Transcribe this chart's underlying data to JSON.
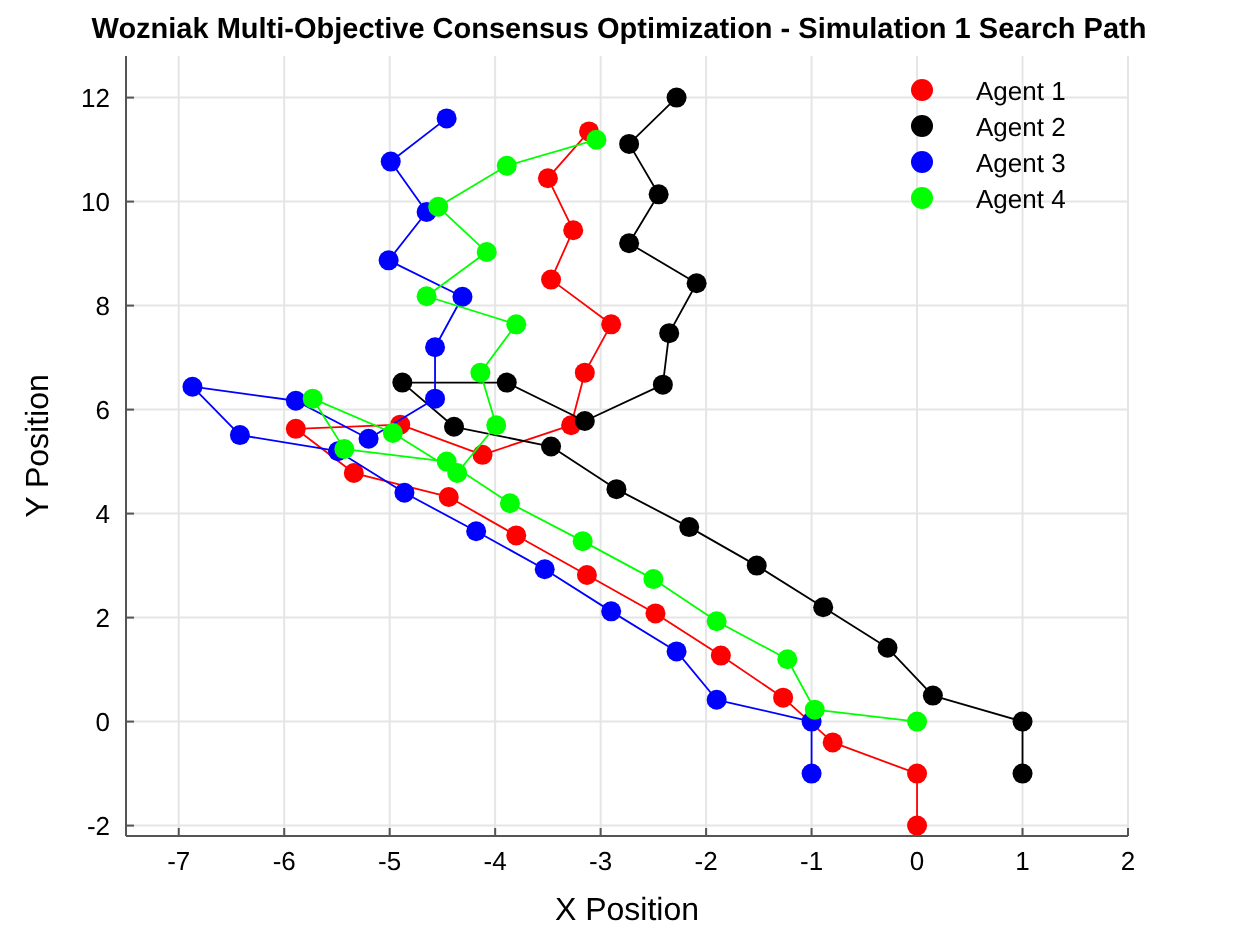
{
  "chart_data": {
    "type": "line",
    "title": "Wozniak Multi-Objective Consensus Optimization - Simulation 1 Search Path",
    "xlabel": "X Position",
    "ylabel": "Y Position",
    "xlim": [
      -7.5,
      2
    ],
    "ylim": [
      -2.2,
      12.8
    ],
    "xticks": [
      -7,
      -6,
      -5,
      -4,
      -3,
      -2,
      -1,
      0,
      1,
      2
    ],
    "yticks": [
      -2,
      0,
      2,
      4,
      6,
      8,
      10,
      12
    ],
    "grid": true,
    "legend": "top right",
    "marker": "circle",
    "line_style": "solid",
    "series": [
      {
        "name": "Agent 1",
        "color": "#ff0000",
        "x": [
          0,
          0,
          -0.8,
          -1.27,
          -1.86,
          -2.48,
          -3.13,
          -3.8,
          -4.44,
          -5.34,
          -5.89,
          -4.9,
          -4.12,
          -3.28,
          -3.15,
          -2.9,
          -3.47,
          -3.26,
          -3.5,
          -3.11
        ],
        "values": [
          -2,
          -1,
          -0.4,
          0.46,
          1.27,
          2.08,
          2.82,
          3.58,
          4.32,
          4.78,
          5.63,
          5.71,
          5.13,
          5.7,
          6.71,
          7.64,
          8.5,
          9.45,
          10.45,
          11.35
        ]
      },
      {
        "name": "Agent 2",
        "color": "#000000",
        "x": [
          1,
          1,
          0.15,
          -0.28,
          -0.89,
          -1.52,
          -2.16,
          -2.85,
          -3.47,
          -4.39,
          -4.88,
          -3.89,
          -3.15,
          -2.41,
          -2.35,
          -2.09,
          -2.73,
          -2.45,
          -2.73,
          -2.28
        ],
        "values": [
          -1,
          0,
          0.5,
          1.42,
          2.2,
          3,
          3.74,
          4.47,
          5.29,
          5.67,
          6.52,
          6.52,
          5.78,
          6.48,
          7.47,
          8.43,
          9.2,
          10.14,
          11.11,
          12
        ]
      },
      {
        "name": "Agent 3",
        "color": "#0000ff",
        "x": [
          -1,
          -1,
          -1.9,
          -2.28,
          -2.9,
          -3.53,
          -4.18,
          -4.86,
          -5.49,
          -6.42,
          -6.87,
          -5.89,
          -5.2,
          -4.57,
          -4.57,
          -4.31,
          -5.01,
          -4.65,
          -4.99,
          -4.46
        ],
        "values": [
          -1,
          0,
          0.42,
          1.35,
          2.12,
          2.93,
          3.66,
          4.4,
          5.2,
          5.51,
          6.44,
          6.17,
          5.44,
          6.21,
          7.2,
          8.17,
          8.87,
          9.8,
          10.77,
          11.6
        ]
      },
      {
        "name": "Agent 4",
        "color": "#00ff00",
        "x": [
          0,
          -0.97,
          -1.23,
          -1.9,
          -2.5,
          -3.17,
          -3.86,
          -4.46,
          -5.43,
          -5.73,
          -4.97,
          -4.36,
          -3.99,
          -4.14,
          -3.8,
          -4.65,
          -4.08,
          -4.54,
          -3.89,
          -3.04
        ],
        "values": [
          0,
          0.23,
          1.2,
          1.93,
          2.74,
          3.47,
          4.2,
          5,
          5.24,
          6.21,
          5.55,
          4.78,
          5.7,
          6.71,
          7.64,
          8.18,
          9.03,
          9.9,
          10.69,
          11.19
        ]
      }
    ]
  }
}
